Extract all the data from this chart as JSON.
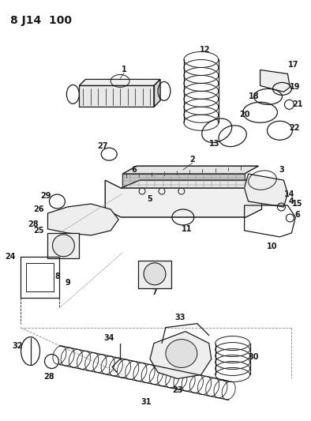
{
  "title": "8 J14  100",
  "bg_color": "#ffffff",
  "line_color": "#1a1a1a",
  "fig_width": 3.94,
  "fig_height": 5.33,
  "dpi": 100
}
